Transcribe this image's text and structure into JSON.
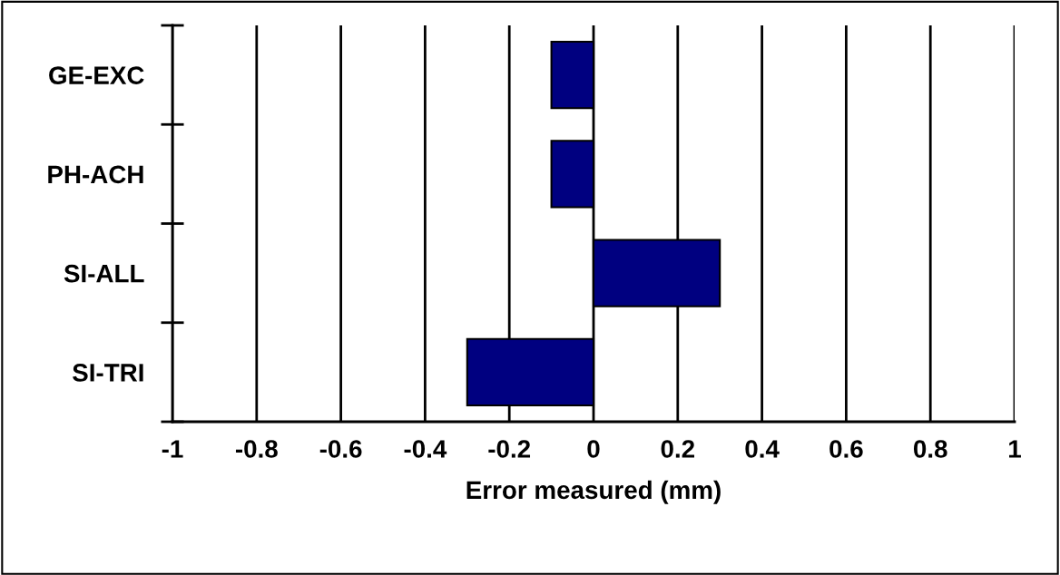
{
  "chart_data": {
    "type": "bar",
    "orientation": "horizontal",
    "xlabel": "Error measured (mm)",
    "categories": [
      "GE-EXC",
      "PH-ACH",
      "SI-ALL",
      "SI-TRI"
    ],
    "values": [
      -0.1,
      -0.1,
      0.3,
      -0.3
    ],
    "color": "#000080",
    "xlim": [
      -1,
      1
    ],
    "xticks": [
      -1,
      -0.8,
      -0.6,
      -0.4,
      -0.2,
      0,
      0.2,
      0.4,
      0.6,
      0.8,
      1
    ],
    "grid": "x",
    "legend": false
  }
}
